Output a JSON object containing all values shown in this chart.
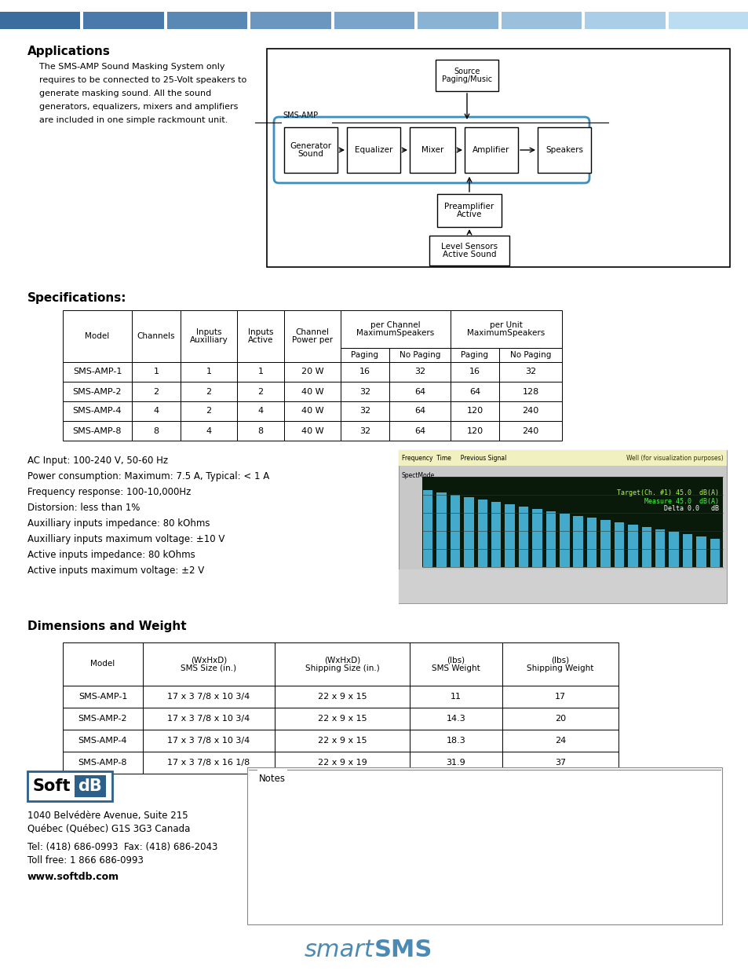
{
  "bg_color": "#ffffff",
  "header_colors": [
    "#3b6d9e",
    "#4a7aab",
    "#5a88b5",
    "#6a96bf",
    "#7aa4c9",
    "#8ab2d3",
    "#9ac0dd",
    "#aacee7",
    "#bbdcf1"
  ],
  "title_applications": "Applications",
  "app_lines": [
    "The SMS-AMP Sound Masking System only",
    "requires to be connected to 25-Volt speakers to",
    "generate masking sound. All the sound",
    "generators, equalizers, mixers and amplifiers",
    "are included in one simple rackmount unit."
  ],
  "title_specifications": "Specifications:",
  "spec_rows": [
    [
      "SMS-AMP-1",
      "1",
      "1",
      "1",
      "20 W",
      "16",
      "32",
      "16",
      "32"
    ],
    [
      "SMS-AMP-2",
      "2",
      "2",
      "2",
      "40 W",
      "32",
      "64",
      "64",
      "128"
    ],
    [
      "SMS-AMP-4",
      "4",
      "2",
      "4",
      "40 W",
      "32",
      "64",
      "120",
      "240"
    ],
    [
      "SMS-AMP-8",
      "8",
      "4",
      "8",
      "40 W",
      "32",
      "64",
      "120",
      "240"
    ]
  ],
  "spec_bullets": [
    "AC Input: 100-240 V, 50-60 Hz",
    "Power consumption: Maximum: 7.5 A, Typical: < 1 A",
    "Frequency response: 100-10,000Hz",
    "Distorsion: less than 1%",
    "Auxilliary inputs impedance: 80 kOhms",
    "Auxilliary inputs maximum voltage: ±10 V",
    "Active inputs impedance: 80 kOhms",
    "Active inputs maximum voltage: ±2 V"
  ],
  "title_dimensions": "Dimensions and Weight",
  "dim_rows": [
    [
      "SMS-AMP-1",
      "17 x 3 7/8 x 10 3/4",
      "22 x 9 x 15",
      "11",
      "17"
    ],
    [
      "SMS-AMP-2",
      "17 x 3 7/8 x 10 3/4",
      "22 x 9 x 15",
      "14.3",
      "20"
    ],
    [
      "SMS-AMP-4",
      "17 x 3 7/8 x 10 3/4",
      "22 x 9 x 15",
      "18.3",
      "24"
    ],
    [
      "SMS-AMP-8",
      "17 x 3 7/8 x 16 1/8",
      "22 x 9 x 19",
      "31.9",
      "37"
    ]
  ],
  "company_line1": "1040 Belvédère Avenue, Suite 215",
  "company_line2": "Québec (Québec) G1S 3G3 Canada",
  "company_tel": "Tel: (418) 686-0993  Fax: (418) 686-2043",
  "company_toll": "Toll free: 1 866 686-0993",
  "company_web": "www.softdb.com",
  "notes_label": "Notes",
  "brand_db_bg": "#2c5f8a",
  "smartsms_color": "#4a8ab5"
}
